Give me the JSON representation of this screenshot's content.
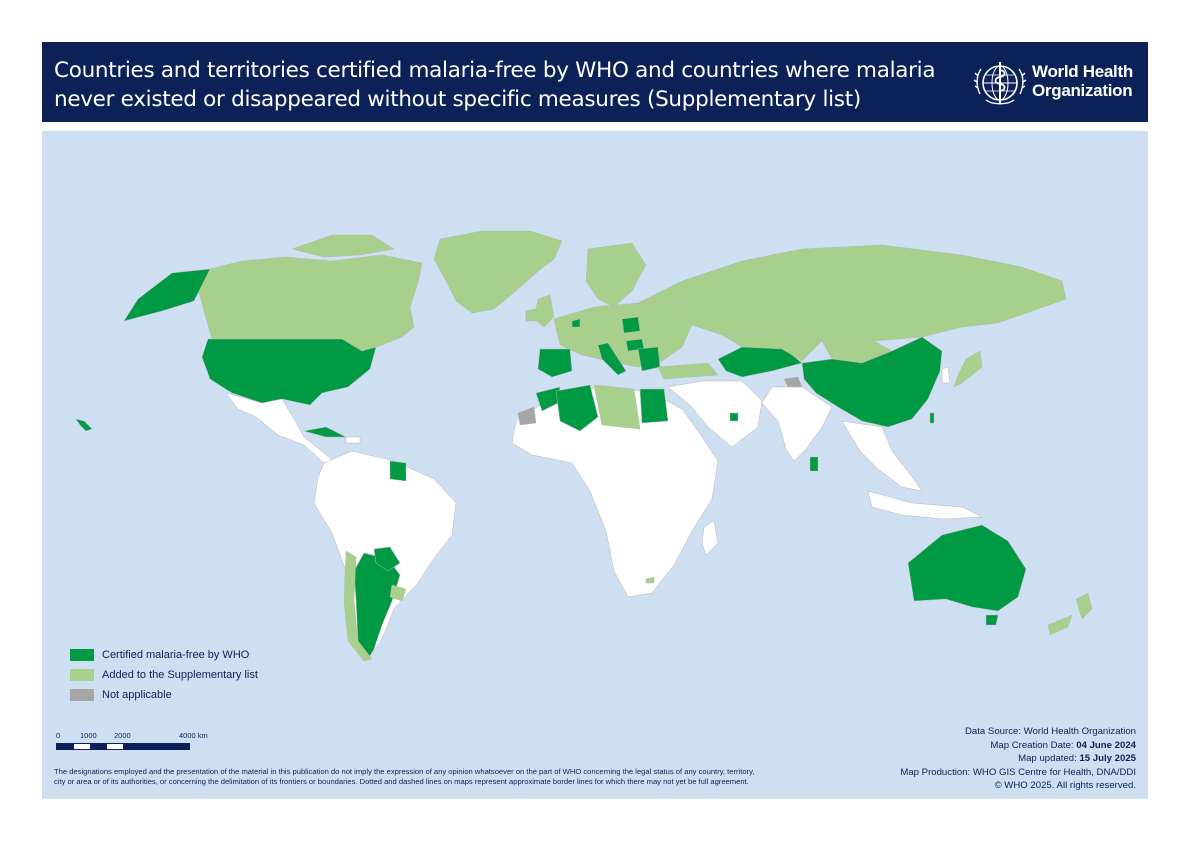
{
  "header": {
    "title_line1": "Countries and territories certified malaria-free by WHO and countries where malaria",
    "title_line2": "never existed or disappeared without specific measures (Supplementary list)",
    "org_line1": "World Health",
    "org_line2": "Organization"
  },
  "colors": {
    "header_bg": "#0b2157",
    "ocean": "#cfdff2",
    "certified": "#009a44",
    "supplementary": "#a8d08d",
    "not_applicable": "#a6a6a6",
    "other_land": "#ffffff"
  },
  "legend": {
    "items": [
      {
        "label": "Certified malaria-free by WHO",
        "color": "#009a44"
      },
      {
        "label": "Added to the Supplementary list",
        "color": "#a8d08d"
      },
      {
        "label": "Not applicable",
        "color": "#a6a6a6"
      }
    ]
  },
  "scale": {
    "labels": [
      "0",
      "1000",
      "2000",
      "4000 km"
    ]
  },
  "disclaimer": {
    "line1": "The designations employed and the presentation of the material in this publication do not imply the expression of any opinion whatsoever on the part of WHO concerning the legal status of any country, territory,",
    "line2": "city or area or of its authorities, or concerning the delimitation of its frontiers or boundaries. Dotted and dashed lines on maps represent approximate border lines for which there may not yet be full agreement."
  },
  "credits": {
    "source": "Data Source: World Health Organization",
    "creation_label": "Map Creation Date: ",
    "creation_date": "04 June 2024",
    "updated_label": "Map updated: ",
    "updated_date": "15 July 2025",
    "production": "Map Production: WHO GIS Centre for Health, DNA/DDI",
    "copyright": "© WHO 2025. All rights reserved."
  }
}
